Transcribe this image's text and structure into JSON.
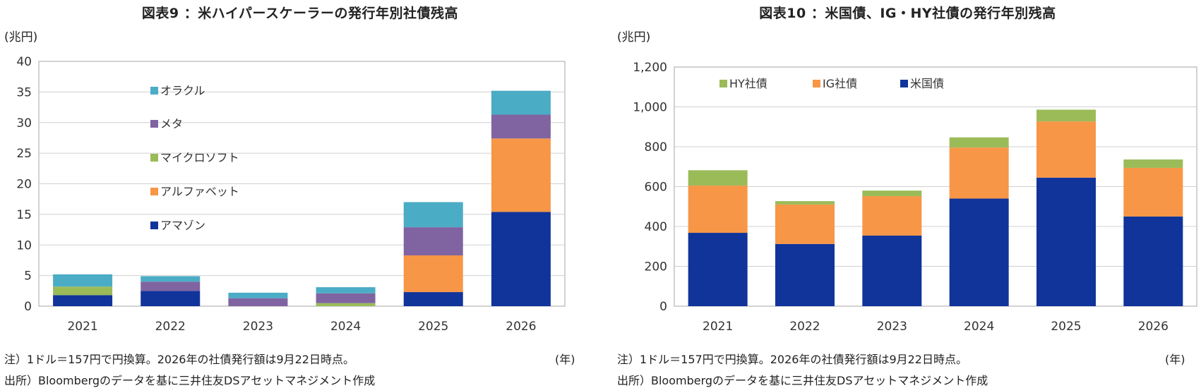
{
  "chart_data": [
    {
      "type": "bar",
      "stacked": true,
      "title": "図表9 ：米ハイパースケーラーの発行年別社債残高",
      "ylabel": "(兆円)",
      "xlabel": "(年)",
      "categories": [
        "2021",
        "2022",
        "2023",
        "2024",
        "2025",
        "2026"
      ],
      "ylim": [
        0,
        40
      ],
      "yticks": [
        "0",
        "5",
        "10",
        "15",
        "20",
        "25",
        "30",
        "35",
        "40"
      ],
      "grid": true,
      "legend_position": "top-left",
      "series": [
        {
          "name": "アマゾン",
          "color": "#11349a",
          "values": [
            1.8,
            2.5,
            0.0,
            0.0,
            2.3,
            15.4
          ]
        },
        {
          "name": "アルファベット",
          "color": "#f79646",
          "values": [
            0.0,
            0.0,
            0.0,
            0.0,
            6.0,
            12.0
          ]
        },
        {
          "name": "マイクロソフト",
          "color": "#9bbb59",
          "values": [
            1.4,
            0.0,
            0.0,
            0.5,
            0.0,
            0.0
          ]
        },
        {
          "name": "メタ",
          "color": "#8064a2",
          "values": [
            0.0,
            1.5,
            1.3,
            1.6,
            4.6,
            3.9
          ]
        },
        {
          "name": "オラクル",
          "color": "#4bacc6",
          "values": [
            2.0,
            0.9,
            0.9,
            1.0,
            4.1,
            3.9
          ]
        }
      ],
      "notes": [
        "注）1ドル＝157円で円換算。2026年の社債発行額は9月22日時点。",
        "出所）Bloombergのデータを基に三井住友DSアセットマネジメント作成"
      ]
    },
    {
      "type": "bar",
      "stacked": true,
      "title": "図表10 ：米国債、IG・HY社債の発行年別残高",
      "ylabel": "(兆円)",
      "xlabel": "(年)",
      "categories": [
        "2021",
        "2022",
        "2023",
        "2024",
        "2025",
        "2026"
      ],
      "ylim": [
        0,
        1200
      ],
      "yticks": [
        "0",
        "200",
        "400",
        "600",
        "800",
        "1,000",
        "1,200"
      ],
      "grid": true,
      "legend_position": "top",
      "series": [
        {
          "name": "米国債",
          "color": "#11349a",
          "values": [
            368,
            312,
            354,
            540,
            645,
            450
          ]
        },
        {
          "name": "IG社債",
          "color": "#f79646",
          "values": [
            237,
            198,
            198,
            256,
            282,
            244
          ]
        },
        {
          "name": "HY社債",
          "color": "#9bbb59",
          "values": [
            77,
            17,
            28,
            51,
            59,
            42
          ]
        }
      ],
      "notes": [
        "注）1ドル＝157円で円換算。2026年の社債発行額は9月22日時点。",
        "出所）Bloombergのデータを基に三井住友DSアセットマネジメント作成"
      ]
    }
  ]
}
